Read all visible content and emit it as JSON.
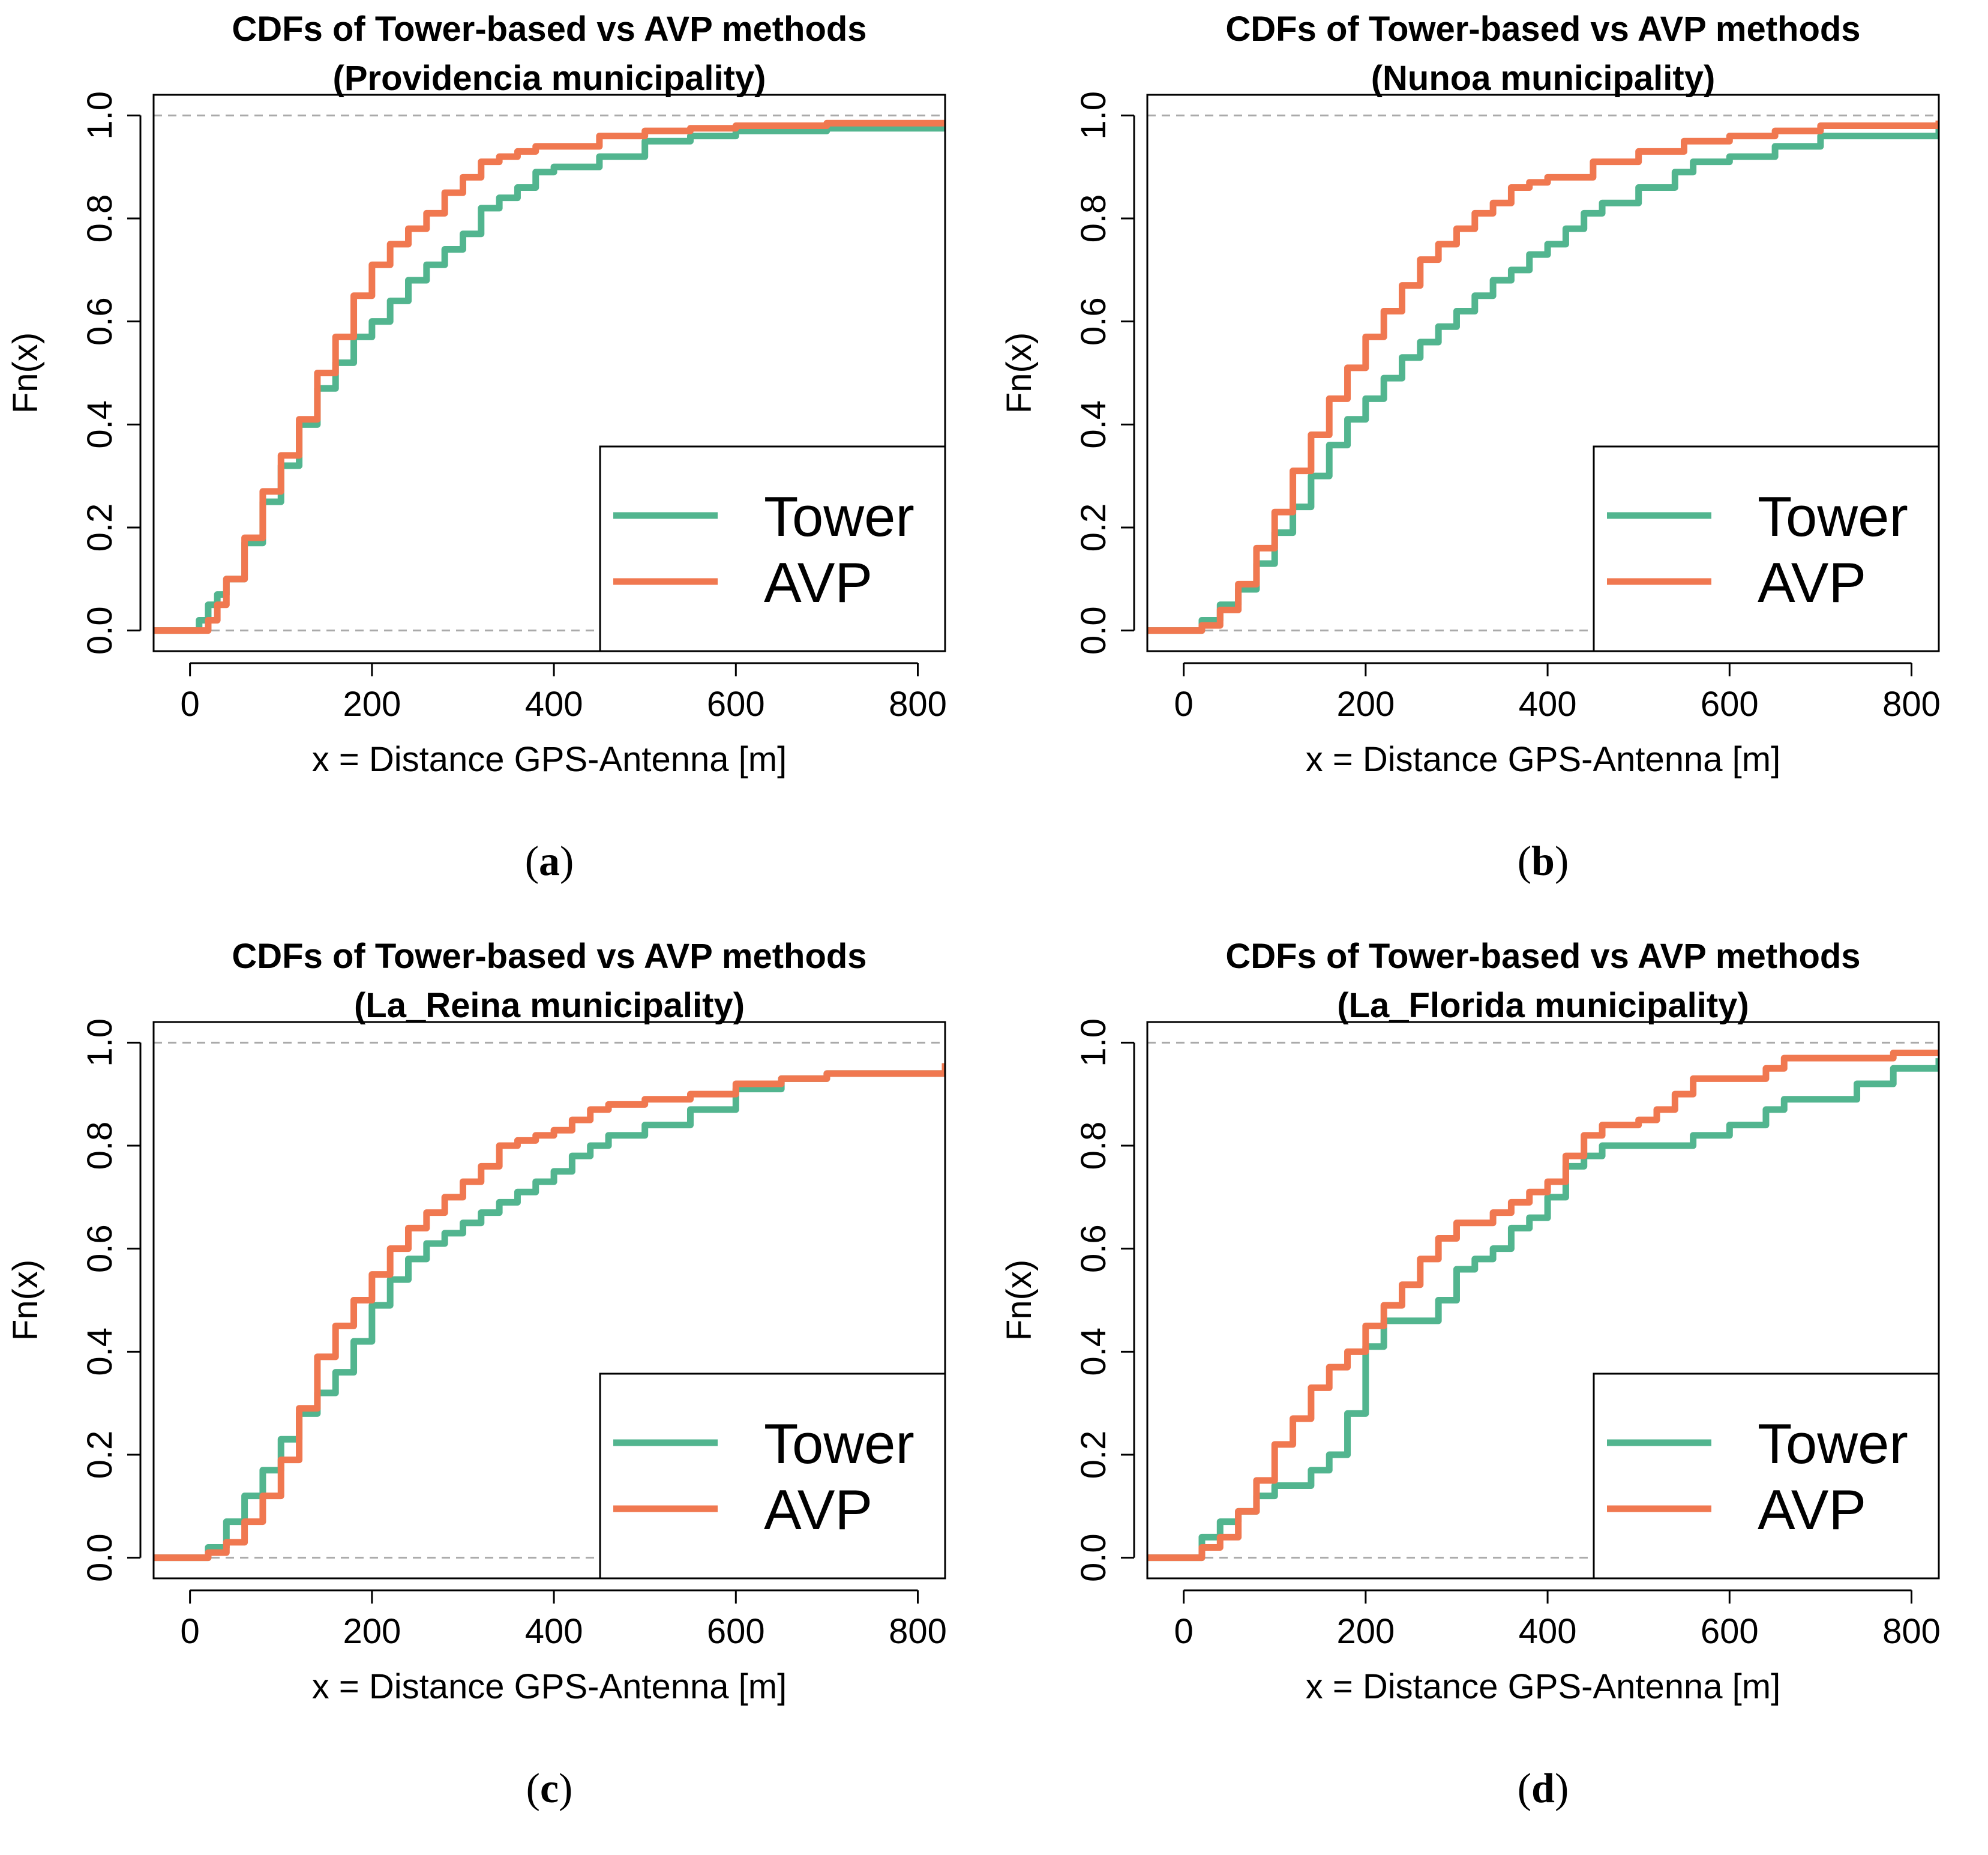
{
  "colors": {
    "tower": "#52b58f",
    "avp": "#f07850",
    "ref_line": "#aaaaaa",
    "axis": "#000000"
  },
  "chart_data": [
    {
      "type": "line",
      "title": [
        "CDFs of Tower-based vs AVP methods",
        "(Providencia municipality)"
      ],
      "xlabel": "x = Distance GPS-Antenna [m]",
      "ylabel": "Fn(x)",
      "caption_letter": "a",
      "xlim": [
        -40,
        830
      ],
      "ylim": [
        -0.04,
        1.04
      ],
      "xticks": [
        0,
        200,
        400,
        600,
        800
      ],
      "xtick_labels": [
        "0",
        "200",
        "400",
        "600",
        "800"
      ],
      "yticks": [
        0.0,
        0.2,
        0.4,
        0.6,
        0.8,
        1.0
      ],
      "ytick_labels": [
        "0.0",
        "0.2",
        "0.4",
        "0.6",
        "0.8",
        "1.0"
      ],
      "reference_lines": [
        0,
        1
      ],
      "legend": [
        "Tower",
        "AVP"
      ],
      "legend_position": "bottom-right",
      "series": [
        {
          "name": "Tower",
          "x": [
            -40,
            0,
            10,
            20,
            30,
            40,
            60,
            80,
            100,
            120,
            140,
            160,
            180,
            200,
            220,
            240,
            260,
            280,
            300,
            320,
            340,
            360,
            380,
            400,
            450,
            500,
            550,
            600,
            700,
            830
          ],
          "y": [
            0,
            0,
            0.02,
            0.05,
            0.07,
            0.1,
            0.17,
            0.25,
            0.32,
            0.4,
            0.47,
            0.52,
            0.57,
            0.6,
            0.64,
            0.68,
            0.71,
            0.74,
            0.77,
            0.82,
            0.84,
            0.86,
            0.89,
            0.9,
            0.92,
            0.95,
            0.96,
            0.97,
            0.975,
            0.985
          ]
        },
        {
          "name": "AVP",
          "x": [
            -40,
            0,
            10,
            20,
            30,
            40,
            60,
            80,
            100,
            120,
            140,
            160,
            180,
            200,
            220,
            240,
            260,
            280,
            300,
            320,
            340,
            360,
            380,
            400,
            450,
            500,
            550,
            600,
            700,
            830
          ],
          "y": [
            0,
            0,
            0.0,
            0.02,
            0.05,
            0.1,
            0.18,
            0.27,
            0.34,
            0.41,
            0.5,
            0.57,
            0.65,
            0.71,
            0.75,
            0.78,
            0.81,
            0.85,
            0.88,
            0.91,
            0.92,
            0.93,
            0.94,
            0.94,
            0.96,
            0.97,
            0.975,
            0.98,
            0.985,
            0.99
          ]
        }
      ]
    },
    {
      "type": "line",
      "title": [
        "CDFs of Tower-based vs AVP methods",
        "(Nunoa municipality)"
      ],
      "xlabel": "x = Distance GPS-Antenna [m]",
      "ylabel": "Fn(x)",
      "caption_letter": "b",
      "xlim": [
        -40,
        830
      ],
      "ylim": [
        -0.04,
        1.04
      ],
      "xticks": [
        0,
        200,
        400,
        600,
        800
      ],
      "xtick_labels": [
        "0",
        "200",
        "400",
        "600",
        "800"
      ],
      "yticks": [
        0.0,
        0.2,
        0.4,
        0.6,
        0.8,
        1.0
      ],
      "ytick_labels": [
        "0.0",
        "0.2",
        "0.4",
        "0.6",
        "0.8",
        "1.0"
      ],
      "reference_lines": [
        0,
        1
      ],
      "legend": [
        "Tower",
        "AVP"
      ],
      "legend_position": "bottom-right",
      "series": [
        {
          "name": "Tower",
          "x": [
            -40,
            0,
            10,
            20,
            40,
            60,
            80,
            100,
            120,
            140,
            160,
            180,
            200,
            220,
            240,
            260,
            280,
            300,
            320,
            340,
            360,
            380,
            400,
            420,
            440,
            460,
            500,
            540,
            560,
            600,
            650,
            700,
            830
          ],
          "y": [
            0,
            0,
            0.0,
            0.02,
            0.05,
            0.08,
            0.13,
            0.19,
            0.24,
            0.3,
            0.36,
            0.41,
            0.45,
            0.49,
            0.53,
            0.56,
            0.59,
            0.62,
            0.65,
            0.68,
            0.7,
            0.73,
            0.75,
            0.78,
            0.81,
            0.83,
            0.86,
            0.89,
            0.91,
            0.92,
            0.94,
            0.96,
            0.98
          ]
        },
        {
          "name": "AVP",
          "x": [
            -40,
            0,
            10,
            20,
            40,
            60,
            80,
            100,
            120,
            140,
            160,
            180,
            200,
            220,
            240,
            260,
            280,
            300,
            320,
            340,
            360,
            380,
            400,
            450,
            500,
            550,
            600,
            650,
            700,
            830
          ],
          "y": [
            0,
            0,
            0.0,
            0.01,
            0.04,
            0.09,
            0.16,
            0.23,
            0.31,
            0.38,
            0.45,
            0.51,
            0.57,
            0.62,
            0.67,
            0.72,
            0.75,
            0.78,
            0.81,
            0.83,
            0.86,
            0.87,
            0.88,
            0.91,
            0.93,
            0.95,
            0.96,
            0.97,
            0.98,
            0.99
          ]
        }
      ]
    },
    {
      "type": "line",
      "title": [
        "CDFs of Tower-based vs AVP methods",
        "(La_Reina municipality)"
      ],
      "xlabel": "x = Distance GPS-Antenna [m]",
      "ylabel": "Fn(x)",
      "caption_letter": "c",
      "xlim": [
        -40,
        830
      ],
      "ylim": [
        -0.04,
        1.04
      ],
      "xticks": [
        0,
        200,
        400,
        600,
        800
      ],
      "xtick_labels": [
        "0",
        "200",
        "400",
        "600",
        "800"
      ],
      "yticks": [
        0.0,
        0.2,
        0.4,
        0.6,
        0.8,
        1.0
      ],
      "ytick_labels": [
        "0.0",
        "0.2",
        "0.4",
        "0.6",
        "0.8",
        "1.0"
      ],
      "reference_lines": [
        0,
        1
      ],
      "legend": [
        "Tower",
        "AVP"
      ],
      "legend_position": "bottom-right",
      "series": [
        {
          "name": "Tower",
          "x": [
            -40,
            0,
            10,
            20,
            40,
            60,
            80,
            100,
            120,
            140,
            160,
            180,
            200,
            220,
            240,
            260,
            280,
            300,
            320,
            340,
            360,
            380,
            400,
            420,
            440,
            460,
            500,
            550,
            600,
            650,
            700,
            830
          ],
          "y": [
            0,
            0,
            0.0,
            0.02,
            0.07,
            0.12,
            0.17,
            0.23,
            0.28,
            0.32,
            0.36,
            0.42,
            0.49,
            0.54,
            0.58,
            0.61,
            0.63,
            0.65,
            0.67,
            0.69,
            0.71,
            0.73,
            0.75,
            0.78,
            0.8,
            0.82,
            0.84,
            0.87,
            0.91,
            0.93,
            0.94,
            0.96
          ]
        },
        {
          "name": "AVP",
          "x": [
            -40,
            0,
            10,
            20,
            40,
            60,
            80,
            100,
            120,
            140,
            160,
            180,
            200,
            220,
            240,
            260,
            280,
            300,
            320,
            340,
            360,
            380,
            400,
            420,
            440,
            460,
            500,
            550,
            600,
            650,
            700,
            830
          ],
          "y": [
            0,
            0,
            0.0,
            0.01,
            0.03,
            0.07,
            0.12,
            0.19,
            0.29,
            0.39,
            0.45,
            0.5,
            0.55,
            0.6,
            0.64,
            0.67,
            0.7,
            0.73,
            0.76,
            0.8,
            0.81,
            0.82,
            0.83,
            0.85,
            0.87,
            0.88,
            0.89,
            0.9,
            0.92,
            0.93,
            0.94,
            0.96
          ]
        }
      ]
    },
    {
      "type": "line",
      "title": [
        "CDFs of Tower-based vs AVP methods",
        "(La_Florida municipality)"
      ],
      "xlabel": "x = Distance GPS-Antenna [m]",
      "ylabel": "Fn(x)",
      "caption_letter": "d",
      "xlim": [
        -40,
        830
      ],
      "ylim": [
        -0.04,
        1.04
      ],
      "xticks": [
        0,
        200,
        400,
        600,
        800
      ],
      "xtick_labels": [
        "0",
        "200",
        "400",
        "600",
        "800"
      ],
      "yticks": [
        0.0,
        0.2,
        0.4,
        0.6,
        0.8,
        1.0
      ],
      "ytick_labels": [
        "0.0",
        "0.2",
        "0.4",
        "0.6",
        "0.8",
        "1.0"
      ],
      "reference_lines": [
        0,
        1
      ],
      "legend": [
        "Tower",
        "AVP"
      ],
      "legend_position": "bottom-right",
      "series": [
        {
          "name": "Tower",
          "x": [
            -40,
            0,
            10,
            20,
            40,
            60,
            80,
            100,
            120,
            140,
            160,
            180,
            200,
            220,
            240,
            260,
            280,
            300,
            320,
            340,
            360,
            380,
            400,
            420,
            440,
            460,
            500,
            540,
            560,
            600,
            640,
            660,
            700,
            740,
            780,
            830
          ],
          "y": [
            0,
            0,
            0.0,
            0.04,
            0.07,
            0.09,
            0.12,
            0.14,
            0.14,
            0.17,
            0.2,
            0.28,
            0.41,
            0.46,
            0.46,
            0.46,
            0.5,
            0.56,
            0.58,
            0.6,
            0.64,
            0.66,
            0.7,
            0.76,
            0.78,
            0.8,
            0.8,
            0.8,
            0.82,
            0.84,
            0.87,
            0.89,
            0.89,
            0.92,
            0.95,
            0.97
          ]
        },
        {
          "name": "AVP",
          "x": [
            -40,
            0,
            10,
            20,
            40,
            60,
            80,
            100,
            120,
            140,
            160,
            180,
            200,
            220,
            240,
            260,
            280,
            300,
            320,
            340,
            360,
            380,
            400,
            420,
            440,
            460,
            500,
            520,
            540,
            560,
            600,
            640,
            660,
            700,
            780,
            830
          ],
          "y": [
            0,
            0,
            0.0,
            0.02,
            0.04,
            0.09,
            0.15,
            0.22,
            0.27,
            0.33,
            0.37,
            0.4,
            0.45,
            0.49,
            0.53,
            0.58,
            0.62,
            0.65,
            0.65,
            0.67,
            0.69,
            0.71,
            0.73,
            0.78,
            0.82,
            0.84,
            0.85,
            0.87,
            0.9,
            0.93,
            0.93,
            0.95,
            0.97,
            0.97,
            0.98,
            0.98
          ]
        }
      ]
    }
  ]
}
